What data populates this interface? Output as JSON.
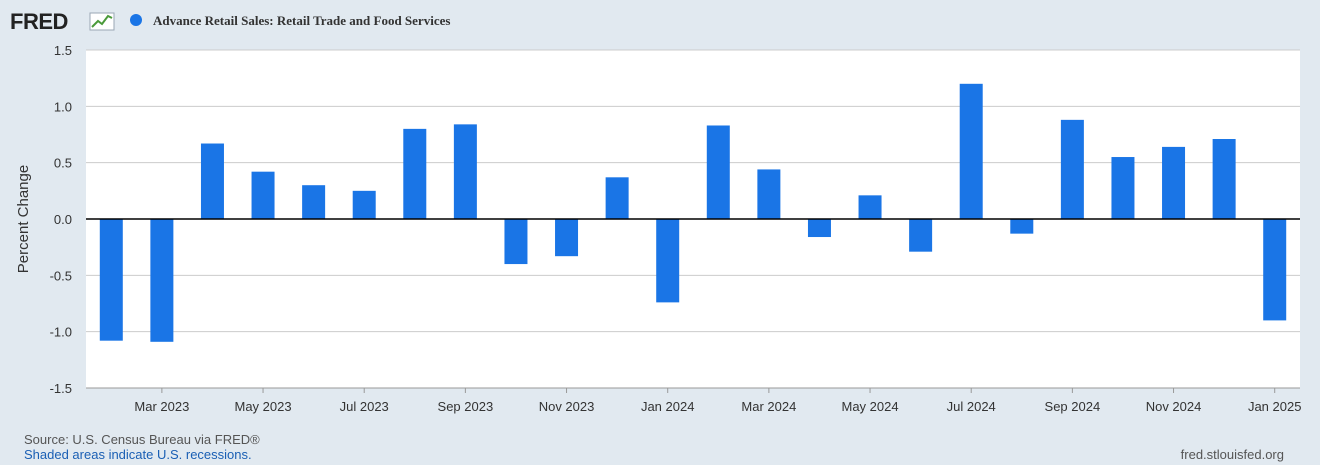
{
  "logo": {
    "text": "FRED",
    "icon": "fred-graph-icon"
  },
  "source": "Source: U.S. Census Bureau via FRED®",
  "recession_note": "Shaded areas indicate U.S. recessions.",
  "site": "fred.stlouisfed.org",
  "colors": {
    "bar": "#1a75e6",
    "background": "#e1e9f0",
    "plot": "#ffffff",
    "grid": "#cccccc",
    "zero_line": "#000000"
  },
  "chart_data": {
    "type": "bar",
    "title": "",
    "ylabel": "Percent Change",
    "xlabel": "",
    "ylim": [
      -1.5,
      1.5
    ],
    "yticks": [
      "1.5",
      "1.0",
      "0.5",
      "0.0",
      "-0.5",
      "-1.0",
      "-1.5"
    ],
    "ytick_values": [
      1.5,
      1.0,
      0.5,
      0.0,
      -0.5,
      -1.0,
      -1.5
    ],
    "grid": true,
    "legend_position": "top-left",
    "categories": [
      "Feb 2023",
      "Mar 2023",
      "Apr 2023",
      "May 2023",
      "Jun 2023",
      "Jul 2023",
      "Aug 2023",
      "Sep 2023",
      "Oct 2023",
      "Nov 2023",
      "Dec 2023",
      "Jan 2024",
      "Feb 2024",
      "Mar 2024",
      "Apr 2024",
      "May 2024",
      "Jun 2024",
      "Jul 2024",
      "Aug 2024",
      "Sep 2024",
      "Oct 2024",
      "Nov 2024",
      "Dec 2024",
      "Jan 2025"
    ],
    "xtick_labels": [
      {
        "label": "Mar 2023",
        "index": 1
      },
      {
        "label": "May 2023",
        "index": 3
      },
      {
        "label": "Jul 2023",
        "index": 5
      },
      {
        "label": "Sep 2023",
        "index": 7
      },
      {
        "label": "Nov 2023",
        "index": 9
      },
      {
        "label": "Jan 2024",
        "index": 11
      },
      {
        "label": "Mar 2024",
        "index": 13
      },
      {
        "label": "May 2024",
        "index": 15
      },
      {
        "label": "Jul 2024",
        "index": 17
      },
      {
        "label": "Sep 2024",
        "index": 19
      },
      {
        "label": "Nov 2024",
        "index": 21
      },
      {
        "label": "Jan 2025",
        "index": 23
      }
    ],
    "series": [
      {
        "name": "Advance Retail Sales: Retail Trade and Food Services",
        "values": [
          -1.08,
          -1.09,
          0.67,
          0.42,
          0.3,
          0.25,
          0.8,
          0.84,
          -0.4,
          -0.33,
          0.37,
          -0.74,
          0.83,
          0.44,
          -0.16,
          0.21,
          -0.29,
          1.2,
          -0.13,
          0.88,
          0.55,
          0.64,
          0.71,
          -0.9
        ]
      }
    ]
  }
}
